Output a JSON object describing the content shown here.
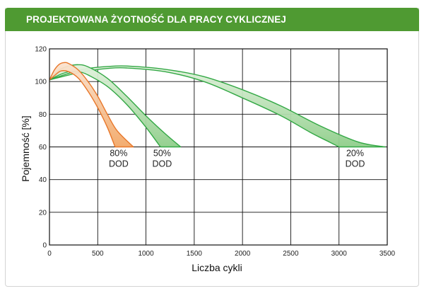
{
  "header": {
    "title": "PROJEKTOWANA ŻYOTNOŚĆ DLA PRACY CYKLICZNEJ"
  },
  "colors": {
    "header_bg": "#4f9a32",
    "orange": "#e8772a",
    "green": "#33a845",
    "green_fill_light": "#e2f2dd",
    "green_fill_dark": "#8fce8a",
    "orange_fill_light": "#fbe3cf",
    "orange_fill_dark": "#f2a868"
  },
  "chart_data": {
    "type": "area",
    "xlabel": "Liczba cykli",
    "ylabel": "Pojemność [%]",
    "xlim": [
      0,
      3500
    ],
    "ylim": [
      0,
      120
    ],
    "xticks": [
      0,
      500,
      1000,
      1500,
      2000,
      2500,
      3000,
      3500
    ],
    "yticks": [
      0,
      20,
      40,
      60,
      80,
      100,
      120
    ],
    "grid": true,
    "series": [
      {
        "name": "80% DOD",
        "label_lines": [
          "80%",
          "DOD"
        ],
        "color_key": "orange",
        "upper": [
          [
            0,
            101
          ],
          [
            50,
            107
          ],
          [
            100,
            110.5
          ],
          [
            150,
            111.6
          ],
          [
            200,
            111
          ],
          [
            300,
            107
          ],
          [
            400,
            100
          ],
          [
            500,
            91
          ],
          [
            600,
            80
          ],
          [
            700,
            70
          ],
          [
            870,
            60
          ]
        ],
        "lower": [
          [
            0,
            101
          ],
          [
            60,
            104
          ],
          [
            120,
            106.5
          ],
          [
            200,
            106
          ],
          [
            300,
            102
          ],
          [
            400,
            94
          ],
          [
            500,
            84
          ],
          [
            600,
            72
          ],
          [
            680,
            60
          ]
        ]
      },
      {
        "name": "50% DOD",
        "label_lines": [
          "50%",
          "DOD"
        ],
        "color_key": "green",
        "upper": [
          [
            0,
            101
          ],
          [
            100,
            107
          ],
          [
            200,
            109.5
          ],
          [
            300,
            110.3
          ],
          [
            400,
            109
          ],
          [
            600,
            102
          ],
          [
            800,
            91
          ],
          [
            1000,
            79
          ],
          [
            1200,
            68
          ],
          [
            1360,
            60
          ]
        ],
        "lower": [
          [
            0,
            101
          ],
          [
            100,
            104
          ],
          [
            200,
            106
          ],
          [
            300,
            106
          ],
          [
            400,
            104
          ],
          [
            600,
            97
          ],
          [
            800,
            86
          ],
          [
            1000,
            72
          ],
          [
            1150,
            60
          ]
        ]
      },
      {
        "name": "20% DOD",
        "label_lines": [
          "20%",
          "DOD"
        ],
        "color_key": "green",
        "upper": [
          [
            0,
            101
          ],
          [
            200,
            105
          ],
          [
            400,
            108
          ],
          [
            600,
            109.2
          ],
          [
            800,
            109.5
          ],
          [
            1200,
            107.5
          ],
          [
            1600,
            103
          ],
          [
            2000,
            95
          ],
          [
            2400,
            85
          ],
          [
            2800,
            73
          ],
          [
            3200,
            63
          ],
          [
            3480,
            60
          ]
        ],
        "lower": [
          [
            0,
            101
          ],
          [
            200,
            104
          ],
          [
            400,
            106.5
          ],
          [
            600,
            108
          ],
          [
            800,
            108.3
          ],
          [
            1200,
            106
          ],
          [
            1600,
            100
          ],
          [
            2000,
            90
          ],
          [
            2400,
            79
          ],
          [
            2700,
            69
          ],
          [
            2900,
            63
          ],
          [
            3000,
            60
          ]
        ]
      }
    ]
  }
}
